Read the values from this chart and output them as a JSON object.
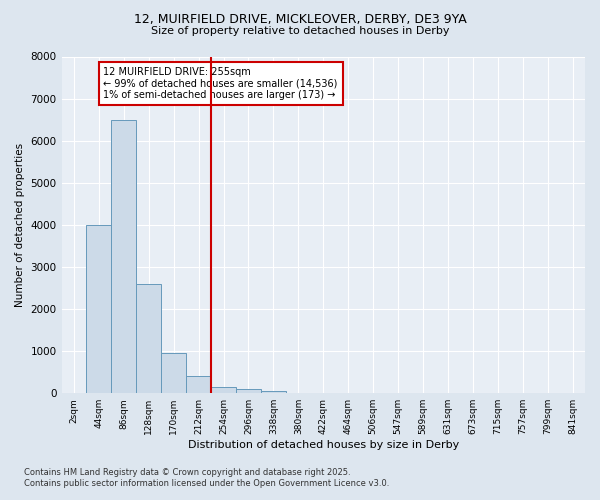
{
  "title_line1": "12, MUIRFIELD DRIVE, MICKLEOVER, DERBY, DE3 9YA",
  "title_line2": "Size of property relative to detached houses in Derby",
  "xlabel": "Distribution of detached houses by size in Derby",
  "ylabel": "Number of detached properties",
  "bar_labels": [
    "2sqm",
    "44sqm",
    "86sqm",
    "128sqm",
    "170sqm",
    "212sqm",
    "254sqm",
    "296sqm",
    "338sqm",
    "380sqm",
    "422sqm",
    "464sqm",
    "506sqm",
    "547sqm",
    "589sqm",
    "631sqm",
    "673sqm",
    "715sqm",
    "757sqm",
    "799sqm",
    "841sqm"
  ],
  "bar_values": [
    0,
    4000,
    6500,
    2600,
    950,
    400,
    150,
    100,
    50,
    0,
    0,
    0,
    0,
    0,
    0,
    0,
    0,
    0,
    0,
    0,
    0
  ],
  "bar_color": "#ccdae8",
  "bar_edgecolor": "#6699bb",
  "highlight_idx": 6,
  "highlight_color": "#cc0000",
  "annotation_text": "12 MUIRFIELD DRIVE: 255sqm\n← 99% of detached houses are smaller (14,536)\n1% of semi-detached houses are larger (173) →",
  "annotation_box_color": "#cc0000",
  "ylim": [
    0,
    8000
  ],
  "yticks": [
    0,
    1000,
    2000,
    3000,
    4000,
    5000,
    6000,
    7000,
    8000
  ],
  "footer_line1": "Contains HM Land Registry data © Crown copyright and database right 2025.",
  "footer_line2": "Contains public sector information licensed under the Open Government Licence v3.0.",
  "bg_color": "#dde6ef",
  "plot_bg_color": "#e8eef5"
}
